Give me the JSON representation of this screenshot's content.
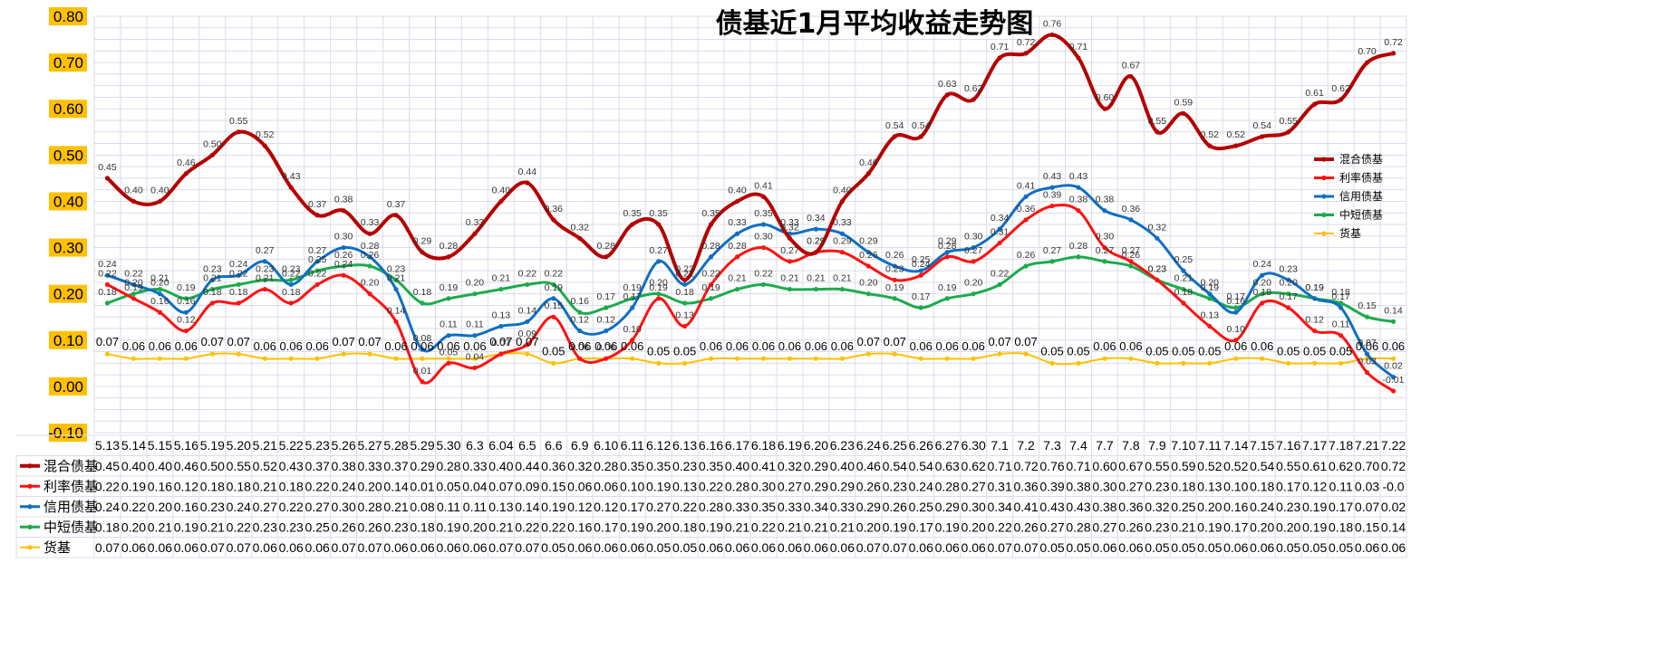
{
  "colors": {
    "hunhe": "#B40000",
    "lilv": "#FF1111",
    "xinyong": "#0F6EC2",
    "zhongduan": "#1DAA4C",
    "huoji": "#FFC000",
    "ytick_bg": "#FFC000",
    "grid": "#D9DCEA"
  },
  "chart_data": {
    "type": "line",
    "title": "债基近1月平均收益走势图",
    "ylim": [
      -0.1,
      0.8
    ],
    "yticks": [
      "0.80",
      "0.70",
      "0.60",
      "0.50",
      "0.40",
      "0.30",
      "0.20",
      "0.10",
      "0.00",
      "-0.10"
    ],
    "grid": true,
    "legend_position": "right",
    "categories": [
      "5.13",
      "5.14",
      "5.15",
      "5.16",
      "5.19",
      "5.20",
      "5.21",
      "5.22",
      "5.23",
      "5.26",
      "5.27",
      "5.28",
      "5.29",
      "5.30",
      "6.3",
      "6.04",
      "6.5",
      "6.6",
      "6.9",
      "6.10",
      "6.11",
      "6.12",
      "6.13",
      "6.16",
      "6.17",
      "6.18",
      "6.19",
      "6.20",
      "6.23",
      "6.24",
      "6.25",
      "6.26",
      "6.27",
      "6.30",
      "7.1",
      "7.2",
      "7.3",
      "7.4",
      "7.7",
      "7.8",
      "7.9",
      "7.10",
      "7.11",
      "7.14",
      "7.15",
      "7.16",
      "7.17",
      "7.18",
      "7.21",
      "7.22"
    ],
    "series": [
      {
        "name": "混合债基",
        "color_key": "hunhe",
        "width": 4,
        "big_labels": false,
        "values": [
          0.45,
          0.4,
          0.4,
          0.46,
          0.5,
          0.55,
          0.52,
          0.43,
          0.37,
          0.38,
          0.33,
          0.37,
          0.29,
          0.28,
          0.33,
          0.4,
          0.44,
          0.36,
          0.32,
          0.28,
          0.35,
          0.35,
          0.23,
          0.35,
          0.4,
          0.41,
          0.32,
          0.29,
          0.4,
          0.46,
          0.54,
          0.54,
          0.63,
          0.62,
          0.71,
          0.72,
          0.76,
          0.71,
          0.6,
          0.67,
          0.55,
          0.59,
          0.52,
          0.52,
          0.54,
          0.55,
          0.61,
          0.62,
          0.7,
          0.72
        ],
        "labels": [
          "0.45",
          "0.40",
          "0.40",
          "0.46",
          "0.50",
          "0.55",
          "0.52",
          "0.43",
          "0.37",
          "0.38",
          "0.33",
          "0.37",
          "0.29",
          "0.28",
          "0.33",
          "0.40",
          "0.44",
          "0.36",
          "0.32",
          "0.28",
          "0.35",
          "0.35",
          "0.23",
          "0.35",
          "0.40",
          "0.41",
          "0.32",
          "0.29",
          "0.40",
          "0.46",
          "0.54",
          "0.54",
          "0.63",
          "0.62",
          "0.71",
          "0.72",
          "0.76",
          "0.71",
          "0.60",
          "0.67",
          "0.55",
          "0.59",
          "0.52",
          "0.52",
          "0.54",
          "0.55",
          "0.61",
          "0.62",
          "0.70",
          "0.72"
        ]
      },
      {
        "name": "利率债基",
        "color_key": "lilv",
        "width": 3,
        "big_labels": false,
        "values": [
          0.22,
          0.19,
          0.16,
          0.12,
          0.18,
          0.18,
          0.21,
          0.18,
          0.22,
          0.24,
          0.2,
          0.14,
          0.01,
          0.05,
          0.04,
          0.07,
          0.09,
          0.15,
          0.06,
          0.06,
          0.1,
          0.19,
          0.13,
          0.22,
          0.28,
          0.3,
          0.27,
          0.29,
          0.29,
          0.26,
          0.23,
          0.24,
          0.28,
          0.27,
          0.31,
          0.36,
          0.39,
          0.38,
          0.3,
          0.27,
          0.23,
          0.18,
          0.13,
          0.1,
          0.18,
          0.17,
          0.12,
          0.11,
          0.03,
          -0.01
        ],
        "labels": [
          "0.22",
          "0.19",
          "0.16",
          "0.12",
          "0.18",
          "0.18",
          "0.21",
          "0.18",
          "0.22",
          "0.24",
          "0.20",
          "0.14",
          "0.01",
          "0.05",
          "0.04",
          "0.07",
          "0.09",
          "0.15",
          "0.06",
          "0.06",
          "0.10",
          "0.19",
          "0.13",
          "0.22",
          "0.28",
          "0.30",
          "0.27",
          "0.29",
          "0.29",
          "0.26",
          "0.23",
          "0.24",
          "0.28",
          "0.27",
          "0.31",
          "0.36",
          "0.39",
          "0.38",
          "0.30",
          "0.27",
          "0.23",
          "0.18",
          "0.13",
          "0.10",
          "0.18",
          "0.17",
          "0.12",
          "0.11",
          "0.03",
          "-0.01"
        ],
        "table": [
          "0.22",
          "0.19",
          "0.16",
          "0.12",
          "0.18",
          "0.18",
          "0.21",
          "0.18",
          "0.22",
          "0.24",
          "0.20",
          "0.14",
          "0.01",
          "0.05",
          "0.04",
          "0.07",
          "0.09",
          "0.15",
          "0.06",
          "0.06",
          "0.10",
          "0.19",
          "0.13",
          "0.22",
          "0.28",
          "0.30",
          "0.27",
          "0.29",
          "0.29",
          "0.26",
          "0.23",
          "0.24",
          "0.28",
          "0.27",
          "0.31",
          "0.36",
          "0.39",
          "0.38",
          "0.30",
          "0.27",
          "0.23",
          "0.18",
          "0.13",
          "0.10",
          "0.18",
          "0.17",
          "0.12",
          "0.11",
          "0.03",
          "-0.0"
        ]
      },
      {
        "name": "信用债基",
        "color_key": "xinyong",
        "width": 3,
        "big_labels": false,
        "values": [
          0.24,
          0.22,
          0.2,
          0.16,
          0.23,
          0.24,
          0.27,
          0.22,
          0.27,
          0.3,
          0.28,
          0.21,
          0.08,
          0.11,
          0.11,
          0.13,
          0.14,
          0.19,
          0.12,
          0.12,
          0.17,
          0.27,
          0.22,
          0.28,
          0.33,
          0.35,
          0.33,
          0.34,
          0.33,
          0.29,
          0.26,
          0.25,
          0.29,
          0.3,
          0.34,
          0.41,
          0.43,
          0.43,
          0.38,
          0.36,
          0.32,
          0.25,
          0.2,
          0.16,
          0.24,
          0.23,
          0.19,
          0.17,
          0.07,
          0.02
        ],
        "labels": [
          "0.24",
          "0.22",
          "0.20",
          "0.16",
          "0.23",
          "0.24",
          "0.27",
          "0.22",
          "0.27",
          "0.30",
          "0.28",
          "0.21",
          "0.08",
          "0.11",
          "0.11",
          "0.13",
          "0.14",
          "0.19",
          "0.12",
          "0.12",
          "0.17",
          "0.27",
          "0.22",
          "0.28",
          "0.33",
          "0.35",
          "0.33",
          "0.34",
          "0.33",
          "0.29",
          "0.26",
          "0.25",
          "0.29",
          "0.30",
          "0.34",
          "0.41",
          "0.43",
          "0.43",
          "0.38",
          "0.36",
          "0.32",
          "0.25",
          "0.20",
          "0.16",
          "0.24",
          "0.23",
          "0.19",
          "0.17",
          "0.07",
          "0.02"
        ]
      },
      {
        "name": "中短债基",
        "color_key": "zhongduan",
        "width": 3,
        "big_labels": false,
        "values": [
          0.18,
          0.2,
          0.21,
          0.19,
          0.21,
          0.22,
          0.23,
          0.23,
          0.25,
          0.26,
          0.26,
          0.23,
          0.18,
          0.19,
          0.2,
          0.21,
          0.22,
          0.22,
          0.16,
          0.17,
          0.19,
          0.2,
          0.18,
          0.19,
          0.21,
          0.22,
          0.21,
          0.21,
          0.21,
          0.2,
          0.19,
          0.17,
          0.19,
          0.2,
          0.22,
          0.26,
          0.27,
          0.28,
          0.27,
          0.26,
          0.23,
          0.21,
          0.19,
          0.17,
          0.2,
          0.2,
          0.19,
          0.18,
          0.15,
          0.14
        ],
        "labels": [
          "0.18",
          "0.20",
          "0.21",
          "0.19",
          "0.21",
          "0.22",
          "0.23",
          "0.23",
          "0.25",
          "0.26",
          "0.26",
          "0.23",
          "0.18",
          "0.19",
          "0.20",
          "0.21",
          "0.22",
          "0.22",
          "0.16",
          "0.17",
          "0.19",
          "0.20",
          "0.18",
          "0.19",
          "0.21",
          "0.22",
          "0.21",
          "0.21",
          "0.21",
          "0.20",
          "0.19",
          "0.17",
          "0.19",
          "0.20",
          "0.22",
          "0.26",
          "0.27",
          "0.28",
          "0.27",
          "0.26",
          "0.23",
          "0.21",
          "0.19",
          "0.17",
          "0.20",
          "0.20",
          "0.19",
          "0.18",
          "0.15",
          "0.14"
        ]
      },
      {
        "name": "货基",
        "color_key": "huoji",
        "width": 2,
        "big_labels": true,
        "values": [
          0.07,
          0.06,
          0.06,
          0.06,
          0.07,
          0.07,
          0.06,
          0.06,
          0.06,
          0.07,
          0.07,
          0.06,
          0.06,
          0.06,
          0.06,
          0.07,
          0.07,
          0.05,
          0.06,
          0.06,
          0.06,
          0.05,
          0.05,
          0.06,
          0.06,
          0.06,
          0.06,
          0.06,
          0.06,
          0.07,
          0.07,
          0.06,
          0.06,
          0.06,
          0.07,
          0.07,
          0.05,
          0.05,
          0.06,
          0.06,
          0.05,
          0.05,
          0.05,
          0.06,
          0.06,
          0.05,
          0.05,
          0.05,
          0.06,
          0.06
        ],
        "labels": [
          "0.07",
          "0.06",
          "0.06",
          "0.06",
          "0.07",
          "0.07",
          "0.06",
          "0.06",
          "0.06",
          "0.07",
          "0.07",
          "0.06",
          "0.06",
          "0.06",
          "0.06",
          "0.07",
          "0.07",
          "0.05",
          "0.06",
          "0.06",
          "0.06",
          "0.05",
          "0.05",
          "0.06",
          "0.06",
          "0.06",
          "0.06",
          "0.06",
          "0.06",
          "0.07",
          "0.07",
          "0.06",
          "0.06",
          "0.06",
          "0.07",
          "0.07",
          "0.05",
          "0.05",
          "0.06",
          "0.06",
          "0.05",
          "0.05",
          "0.05",
          "0.06",
          "0.06",
          "0.05",
          "0.05",
          "0.05",
          "0.06",
          "0.06"
        ]
      }
    ]
  }
}
